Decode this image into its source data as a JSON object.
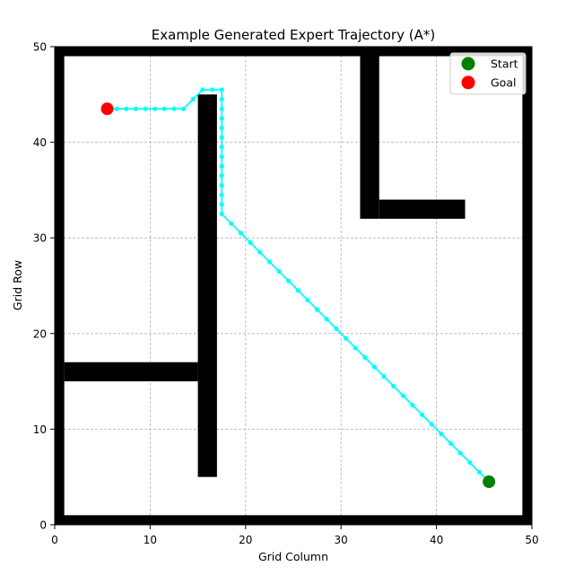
{
  "chart_data": {
    "type": "scatter",
    "title": "Example Generated Expert Trajectory (A*)",
    "xlabel": "Grid Column",
    "ylabel": "Grid Row",
    "xlim": [
      0,
      50
    ],
    "ylim": [
      0,
      50
    ],
    "xticks": [
      0,
      10,
      20,
      30,
      40,
      50
    ],
    "yticks": [
      0,
      10,
      20,
      30,
      40,
      50
    ],
    "grid": true,
    "legend_position": "upper-right",
    "obstacles": [
      {
        "x": [
          0,
          50
        ],
        "y": [
          49,
          50
        ]
      },
      {
        "x": [
          0,
          50
        ],
        "y": [
          0,
          1
        ]
      },
      {
        "x": [
          0,
          1
        ],
        "y": [
          0,
          50
        ]
      },
      {
        "x": [
          49,
          50
        ],
        "y": [
          0,
          50
        ]
      },
      {
        "x": [
          15,
          17
        ],
        "y": [
          5,
          45
        ]
      },
      {
        "x": [
          1,
          15
        ],
        "y": [
          15,
          17
        ]
      },
      {
        "x": [
          32,
          34
        ],
        "y": [
          32,
          50
        ]
      },
      {
        "x": [
          34,
          43
        ],
        "y": [
          32,
          34
        ]
      }
    ],
    "trajectory": {
      "color": "#00ffff",
      "x": [
        45.5,
        44.5,
        43.5,
        42.5,
        41.5,
        40.5,
        39.5,
        38.5,
        37.5,
        36.5,
        35.5,
        34.5,
        33.5,
        32.5,
        31.5,
        30.5,
        29.5,
        28.5,
        27.5,
        26.5,
        25.5,
        24.5,
        23.5,
        22.5,
        21.5,
        20.5,
        19.5,
        18.5,
        17.5,
        17.5,
        17.5,
        17.5,
        17.5,
        17.5,
        17.5,
        17.5,
        17.5,
        17.5,
        17.5,
        17.5,
        17.5,
        17.5,
        16.5,
        15.5,
        14.5,
        13.5,
        12.5,
        11.5,
        10.5,
        9.5,
        8.5,
        7.5,
        6.5,
        5.5
      ],
      "y": [
        4.5,
        5.5,
        6.5,
        7.5,
        8.5,
        9.5,
        10.5,
        11.5,
        12.5,
        13.5,
        14.5,
        15.5,
        16.5,
        17.5,
        18.5,
        19.5,
        20.5,
        21.5,
        22.5,
        23.5,
        24.5,
        25.5,
        26.5,
        27.5,
        28.5,
        29.5,
        30.5,
        31.5,
        32.5,
        33.5,
        34.5,
        35.5,
        36.5,
        37.5,
        38.5,
        39.5,
        40.5,
        41.5,
        42.5,
        43.5,
        44.5,
        45.5,
        45.5,
        45.5,
        44.5,
        43.5,
        43.5,
        43.5,
        43.5,
        43.5,
        43.5,
        43.5,
        43.5,
        43.5
      ]
    },
    "start": {
      "name": "Start",
      "x": 45.5,
      "y": 4.5,
      "color": "#008000"
    },
    "goal": {
      "name": "Goal",
      "x": 5.5,
      "y": 43.5,
      "color": "#ff0000"
    }
  }
}
